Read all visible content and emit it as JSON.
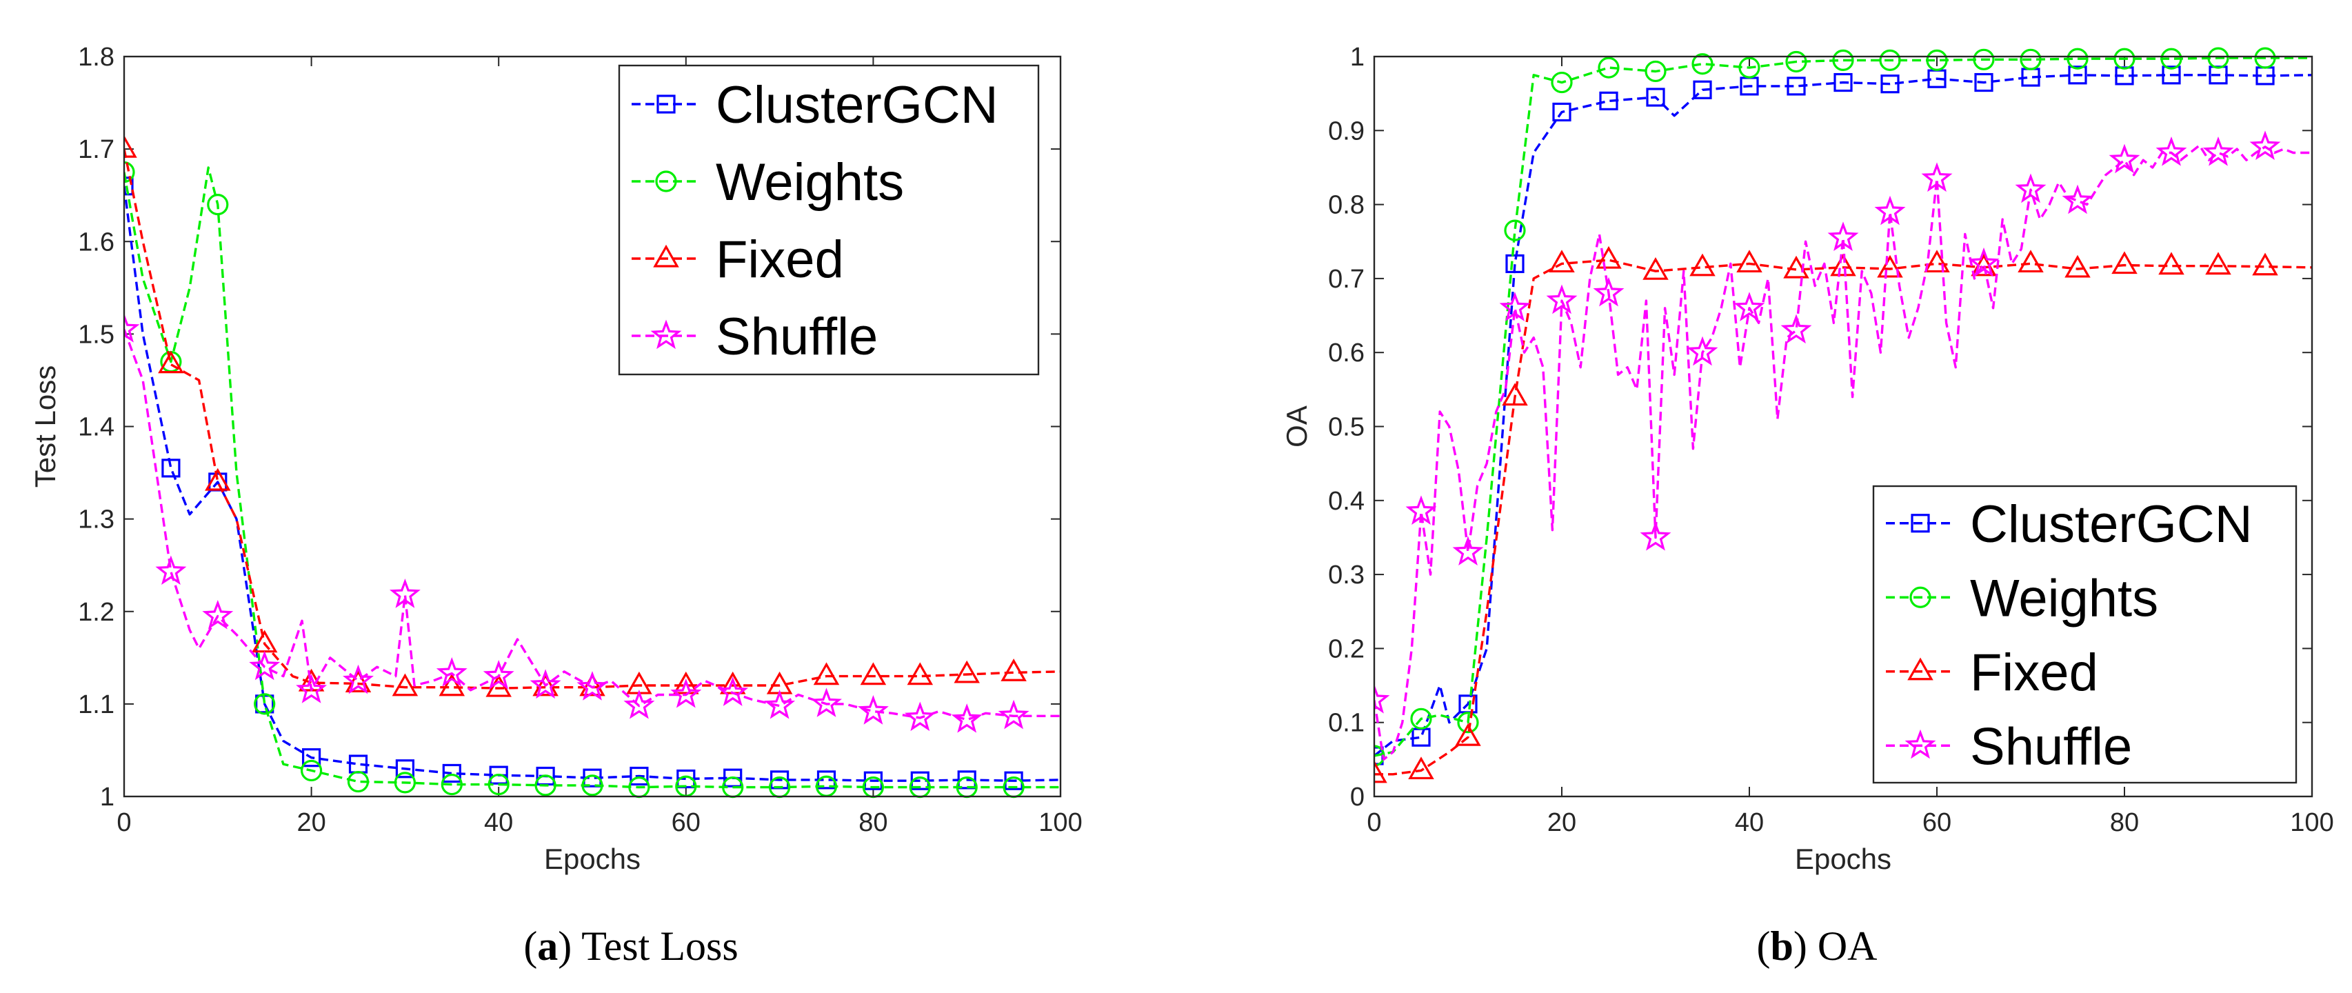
{
  "chart_data": [
    {
      "type": "line",
      "caption_letter": "a",
      "caption_text": "Test Loss",
      "xlabel": "Epochs",
      "ylabel": "Test Loss",
      "xlim": [
        0,
        100
      ],
      "ylim": [
        1,
        1.8
      ],
      "xticks": [
        "0",
        "20",
        "40",
        "60",
        "80",
        "100"
      ],
      "yticks": [
        "1",
        "1.1",
        "1.2",
        "1.3",
        "1.4",
        "1.5",
        "1.6",
        "1.7",
        "1.8"
      ],
      "legend_position": "top-right",
      "series": [
        {
          "name": "ClusterGCN",
          "color": "#0000ff",
          "marker": "square",
          "x": [
            0,
            2,
            5,
            7,
            10,
            12,
            15,
            17,
            20,
            25,
            30,
            35,
            40,
            45,
            50,
            55,
            60,
            65,
            70,
            75,
            80,
            85,
            90,
            95,
            100
          ],
          "y": [
            1.66,
            1.5,
            1.355,
            1.305,
            1.34,
            1.3,
            1.1,
            1.06,
            1.042,
            1.035,
            1.03,
            1.025,
            1.023,
            1.022,
            1.02,
            1.022,
            1.019,
            1.02,
            1.018,
            1.018,
            1.017,
            1.017,
            1.018,
            1.017,
            1.018
          ],
          "marker_x": [
            0,
            5,
            10,
            15,
            20,
            25,
            30,
            35,
            40,
            45,
            50,
            55,
            60,
            65,
            70,
            75,
            80,
            85,
            90,
            95
          ]
        },
        {
          "name": "Weights",
          "color": "#00ee00",
          "marker": "circle",
          "x": [
            0,
            2,
            5,
            7,
            9,
            10,
            12,
            15,
            17,
            20,
            25,
            30,
            35,
            40,
            45,
            50,
            55,
            60,
            65,
            70,
            75,
            80,
            85,
            90,
            95,
            100
          ],
          "y": [
            1.675,
            1.56,
            1.47,
            1.55,
            1.68,
            1.64,
            1.35,
            1.1,
            1.035,
            1.028,
            1.016,
            1.015,
            1.013,
            1.013,
            1.012,
            1.012,
            1.01,
            1.011,
            1.01,
            1.01,
            1.011,
            1.01,
            1.01,
            1.01,
            1.01,
            1.01
          ],
          "marker_x": [
            0,
            5,
            10,
            15,
            20,
            25,
            30,
            35,
            40,
            45,
            50,
            55,
            60,
            65,
            70,
            75,
            80,
            85,
            90,
            95
          ]
        },
        {
          "name": "Fixed",
          "color": "#ff0000",
          "marker": "triangle",
          "x": [
            0,
            2,
            5,
            8,
            10,
            12,
            15,
            18,
            20,
            25,
            30,
            35,
            40,
            45,
            50,
            55,
            60,
            65,
            70,
            75,
            80,
            85,
            90,
            95,
            100
          ],
          "y": [
            1.7,
            1.6,
            1.467,
            1.45,
            1.34,
            1.3,
            1.165,
            1.13,
            1.123,
            1.122,
            1.118,
            1.118,
            1.117,
            1.118,
            1.118,
            1.12,
            1.12,
            1.12,
            1.12,
            1.13,
            1.13,
            1.13,
            1.132,
            1.134,
            1.135
          ],
          "marker_x": [
            0,
            5,
            10,
            15,
            20,
            25,
            30,
            35,
            40,
            45,
            50,
            55,
            60,
            65,
            70,
            75,
            80,
            85,
            90,
            95
          ]
        },
        {
          "name": "Shuffle",
          "color": "#ff00ff",
          "marker": "star",
          "x": [
            0,
            2,
            5,
            7,
            8,
            10,
            12,
            15,
            17,
            19,
            20,
            22,
            25,
            27,
            29,
            30,
            31,
            33,
            35,
            37,
            40,
            42,
            45,
            47,
            50,
            52,
            55,
            57,
            60,
            62,
            65,
            67,
            70,
            72,
            75,
            77,
            80,
            82,
            85,
            87,
            90,
            92,
            95,
            100
          ],
          "y": [
            1.505,
            1.45,
            1.243,
            1.18,
            1.16,
            1.195,
            1.175,
            1.14,
            1.13,
            1.19,
            1.115,
            1.15,
            1.125,
            1.14,
            1.13,
            1.218,
            1.12,
            1.125,
            1.133,
            1.115,
            1.13,
            1.17,
            1.12,
            1.135,
            1.118,
            1.125,
            1.098,
            1.11,
            1.11,
            1.125,
            1.112,
            1.105,
            1.098,
            1.11,
            1.1,
            1.1,
            1.092,
            1.09,
            1.085,
            1.092,
            1.083,
            1.09,
            1.087,
            1.087
          ],
          "marker_x": [
            0,
            5,
            10,
            15,
            20,
            25,
            30,
            35,
            40,
            45,
            50,
            55,
            60,
            65,
            70,
            75,
            80,
            85,
            90,
            95
          ]
        }
      ]
    },
    {
      "type": "line",
      "caption_letter": "b",
      "caption_text": "OA",
      "xlabel": "Epochs",
      "ylabel": "OA",
      "xlim": [
        0,
        100
      ],
      "ylim": [
        0,
        1
      ],
      "xticks": [
        "0",
        "20",
        "40",
        "60",
        "80",
        "100"
      ],
      "yticks": [
        "0",
        "0.1",
        "0.2",
        "0.3",
        "0.4",
        "0.5",
        "0.6",
        "0.7",
        "0.8",
        "0.9",
        "1"
      ],
      "legend_position": "bottom-right",
      "series": [
        {
          "name": "ClusterGCN",
          "color": "#0000ff",
          "marker": "square",
          "x": [
            0,
            2,
            5,
            7,
            8,
            10,
            12,
            15,
            17,
            20,
            25,
            30,
            32,
            35,
            40,
            45,
            50,
            55,
            60,
            65,
            70,
            75,
            80,
            85,
            90,
            95,
            100
          ],
          "y": [
            0.055,
            0.075,
            0.08,
            0.15,
            0.1,
            0.125,
            0.2,
            0.72,
            0.87,
            0.925,
            0.94,
            0.945,
            0.92,
            0.955,
            0.96,
            0.96,
            0.965,
            0.963,
            0.97,
            0.965,
            0.972,
            0.975,
            0.974,
            0.975,
            0.975,
            0.974,
            0.975
          ],
          "marker_x": [
            0,
            5,
            10,
            15,
            20,
            25,
            30,
            35,
            40,
            45,
            50,
            55,
            60,
            65,
            70,
            75,
            80,
            85,
            90,
            95
          ]
        },
        {
          "name": "Weights",
          "color": "#00ee00",
          "marker": "circle",
          "x": [
            0,
            2,
            5,
            7,
            10,
            12,
            15,
            17,
            20,
            25,
            30,
            35,
            40,
            45,
            50,
            55,
            60,
            65,
            70,
            75,
            80,
            85,
            90,
            95,
            100
          ],
          "y": [
            0.055,
            0.06,
            0.105,
            0.11,
            0.1,
            0.35,
            0.765,
            0.975,
            0.965,
            0.985,
            0.98,
            0.99,
            0.985,
            0.993,
            0.995,
            0.995,
            0.995,
            0.996,
            0.996,
            0.997,
            0.997,
            0.997,
            0.998,
            0.998,
            0.998
          ],
          "marker_x": [
            0,
            5,
            10,
            15,
            20,
            25,
            30,
            35,
            40,
            45,
            50,
            55,
            60,
            65,
            70,
            75,
            80,
            85,
            90,
            95
          ]
        },
        {
          "name": "Fixed",
          "color": "#ff0000",
          "marker": "triangle",
          "x": [
            0,
            2,
            5,
            8,
            10,
            12,
            15,
            17,
            20,
            25,
            30,
            35,
            40,
            45,
            50,
            55,
            60,
            65,
            70,
            75,
            80,
            85,
            90,
            95,
            100
          ],
          "y": [
            0.03,
            0.03,
            0.035,
            0.06,
            0.08,
            0.25,
            0.54,
            0.7,
            0.72,
            0.725,
            0.71,
            0.715,
            0.72,
            0.712,
            0.715,
            0.713,
            0.72,
            0.715,
            0.72,
            0.713,
            0.718,
            0.717,
            0.717,
            0.716,
            0.715
          ],
          "marker_x": [
            0,
            5,
            10,
            15,
            20,
            25,
            30,
            35,
            40,
            45,
            50,
            55,
            60,
            65,
            70,
            75,
            80,
            85,
            90,
            95
          ]
        },
        {
          "name": "Shuffle",
          "color": "#ff00ff",
          "marker": "star",
          "x": [
            0,
            1,
            2,
            3,
            4,
            5,
            6,
            7,
            8,
            9,
            10,
            11,
            12,
            13,
            14,
            15,
            16,
            17,
            18,
            19,
            20,
            21,
            22,
            23,
            24,
            25,
            26,
            27,
            28,
            29,
            30,
            31,
            32,
            33,
            34,
            35,
            36,
            37,
            38,
            39,
            40,
            41,
            42,
            43,
            44,
            45,
            46,
            47,
            48,
            49,
            50,
            51,
            52,
            53,
            54,
            55,
            56,
            57,
            58,
            59,
            60,
            61,
            62,
            63,
            64,
            65,
            66,
            67,
            68,
            69,
            70,
            71,
            72,
            73,
            74,
            75,
            76,
            77,
            78,
            79,
            80,
            81,
            82,
            83,
            84,
            85,
            86,
            87,
            88,
            89,
            90,
            91,
            92,
            93,
            94,
            95,
            96,
            97,
            98,
            99,
            100
          ],
          "y": [
            0.13,
            0.05,
            0.06,
            0.1,
            0.2,
            0.385,
            0.3,
            0.52,
            0.5,
            0.44,
            0.33,
            0.42,
            0.45,
            0.52,
            0.55,
            0.66,
            0.6,
            0.62,
            0.58,
            0.36,
            0.67,
            0.64,
            0.58,
            0.7,
            0.76,
            0.68,
            0.57,
            0.58,
            0.55,
            0.67,
            0.35,
            0.66,
            0.57,
            0.71,
            0.47,
            0.6,
            0.62,
            0.66,
            0.72,
            0.58,
            0.66,
            0.64,
            0.7,
            0.51,
            0.62,
            0.63,
            0.75,
            0.69,
            0.72,
            0.64,
            0.755,
            0.54,
            0.71,
            0.68,
            0.6,
            0.79,
            0.69,
            0.62,
            0.66,
            0.72,
            0.835,
            0.64,
            0.58,
            0.76,
            0.7,
            0.72,
            0.66,
            0.78,
            0.72,
            0.74,
            0.82,
            0.78,
            0.8,
            0.83,
            0.81,
            0.805,
            0.8,
            0.82,
            0.84,
            0.85,
            0.86,
            0.84,
            0.86,
            0.85,
            0.87,
            0.87,
            0.86,
            0.87,
            0.88,
            0.86,
            0.87,
            0.865,
            0.875,
            0.86,
            0.87,
            0.878,
            0.87,
            0.875,
            0.87,
            0.87,
            0.87
          ],
          "marker_x": [
            0,
            5,
            10,
            15,
            20,
            25,
            30,
            35,
            40,
            45,
            50,
            55,
            60,
            65,
            70,
            75,
            80,
            85,
            90,
            95
          ]
        }
      ]
    }
  ]
}
